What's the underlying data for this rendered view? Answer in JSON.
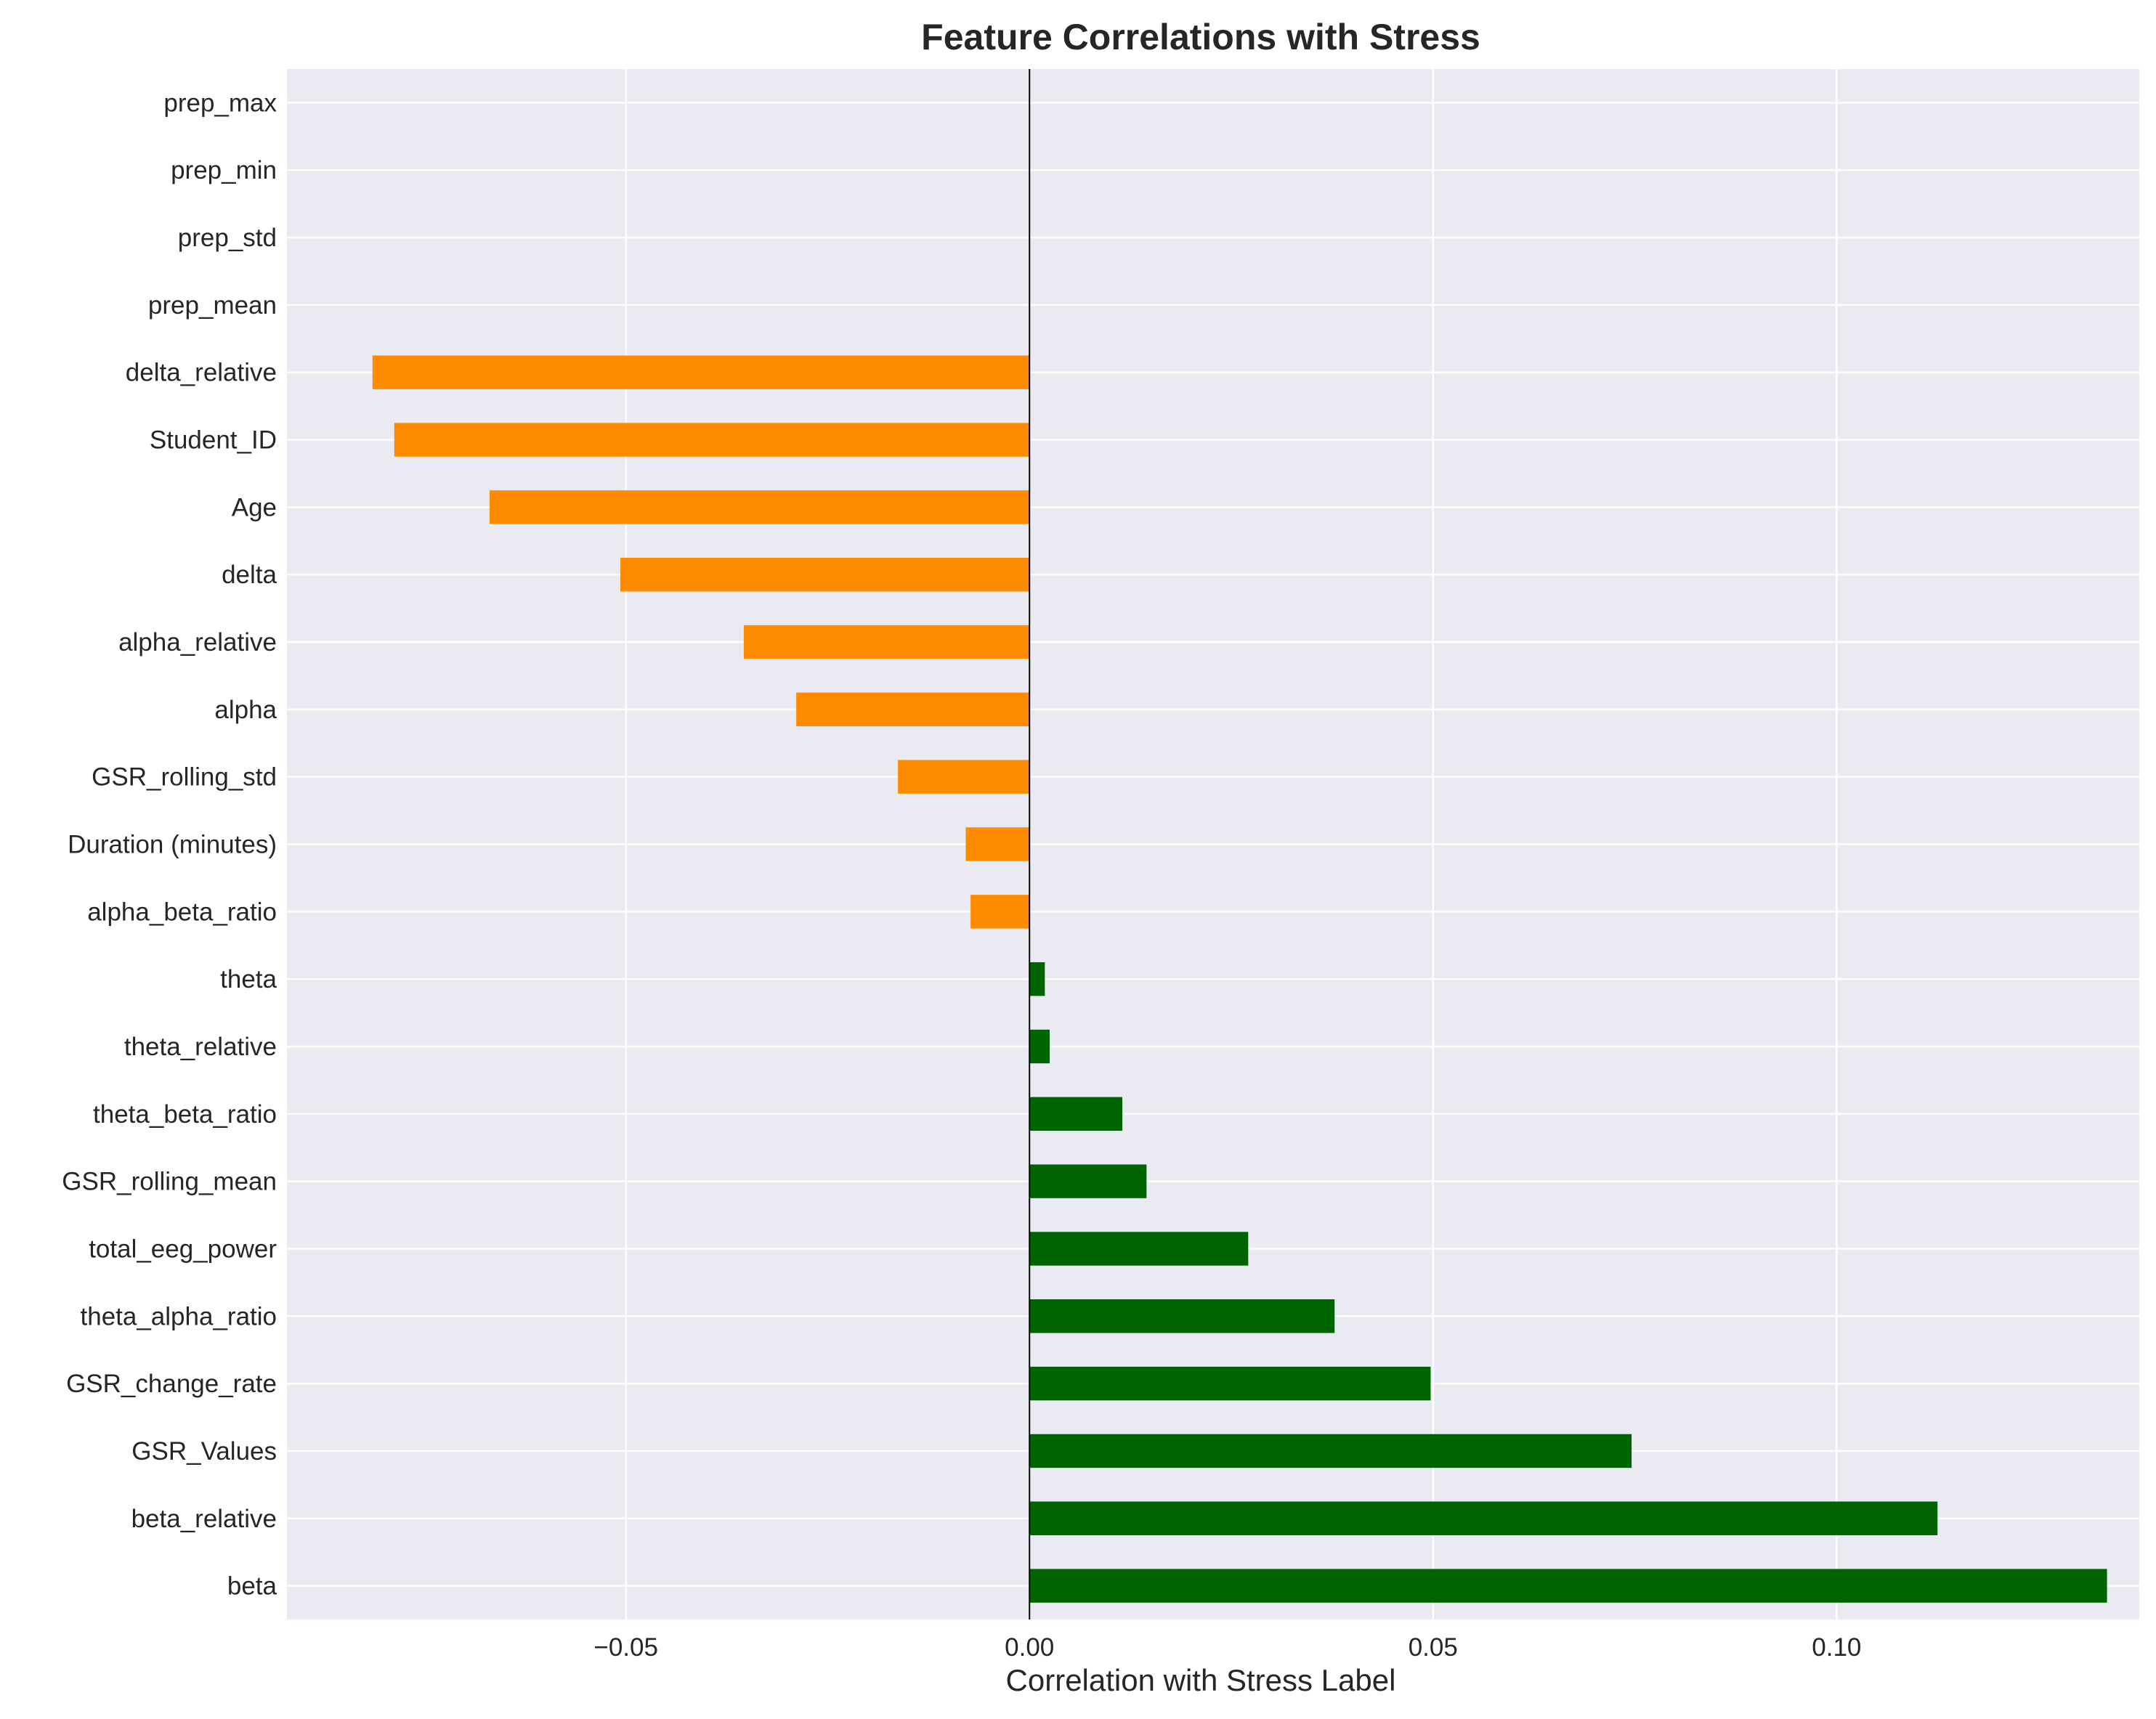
{
  "chart_data": {
    "type": "bar",
    "orientation": "horizontal",
    "title": "Feature Correlations with Stress",
    "xlabel": "Correlation with Stress Label",
    "ylabel": "",
    "xlim": [
      -0.092,
      0.1375
    ],
    "xticks": [
      -0.05,
      0.0,
      0.05,
      0.1
    ],
    "xtick_labels": [
      "−0.05",
      "0.00",
      "0.05",
      "0.10"
    ],
    "grid": true,
    "legend": "none",
    "colors": {
      "positive": "#006400",
      "negative": "#ff8c00",
      "background": "#eaeaf2",
      "grid": "#ffffff",
      "zero_line": "#000000"
    },
    "categories": [
      "beta",
      "beta_relative",
      "GSR_Values",
      "GSR_change_rate",
      "theta_alpha_ratio",
      "total_eeg_power",
      "GSR_rolling_mean",
      "theta_beta_ratio",
      "theta_relative",
      "theta",
      "alpha_beta_ratio",
      "Duration (minutes)",
      "GSR_rolling_std",
      "alpha",
      "alpha_relative",
      "delta",
      "Age",
      "Student_ID",
      "delta_relative",
      "prep_mean",
      "prep_std",
      "prep_min",
      "prep_max"
    ],
    "values": [
      0.1335,
      0.1125,
      0.0746,
      0.0497,
      0.0378,
      0.0271,
      0.0145,
      0.0115,
      0.0025,
      0.0019,
      -0.0073,
      -0.0079,
      -0.0163,
      -0.0289,
      -0.0354,
      -0.0507,
      -0.0669,
      -0.0787,
      -0.0814,
      0.0,
      0.0,
      0.0,
      0.0
    ]
  }
}
